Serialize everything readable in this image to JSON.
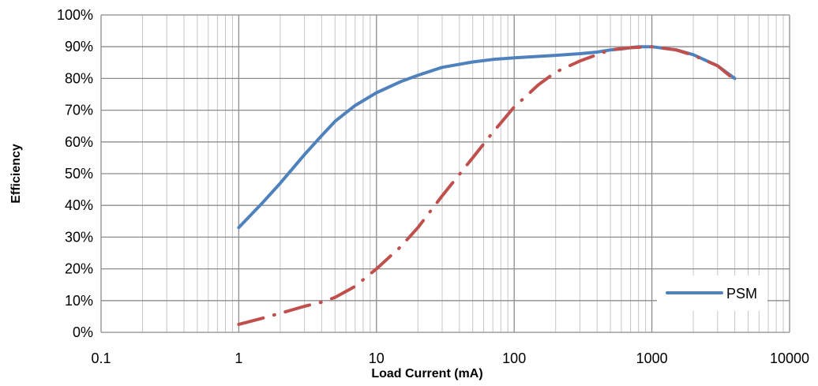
{
  "chart_data": {
    "type": "line",
    "title": "",
    "xlabel": "Load Current (mA)",
    "ylabel": "Efficiency",
    "x_scale": "log",
    "xlim": [
      0.1,
      10000
    ],
    "ylim": [
      0,
      100
    ],
    "x_ticks": [
      "0.1",
      "1",
      "10",
      "100",
      "1000",
      "10000"
    ],
    "y_ticks": [
      "0%",
      "10%",
      "20%",
      "30%",
      "40%",
      "50%",
      "60%",
      "70%",
      "80%",
      "90%",
      "100%"
    ],
    "grid": true,
    "legend_position": "bottom-right",
    "series": [
      {
        "name": "PSM",
        "color": "#4f81bd",
        "style": "solid",
        "x": [
          1,
          1.5,
          2,
          3,
          4,
          5,
          7,
          10,
          15,
          20,
          30,
          50,
          70,
          100,
          200,
          300,
          400,
          500,
          600,
          700,
          800,
          1000,
          1500,
          2000,
          3000,
          4000
        ],
        "y": [
          33,
          41,
          47,
          56,
          62,
          66.5,
          71.5,
          75.5,
          79,
          81,
          83.5,
          85.2,
          86,
          86.5,
          87.3,
          87.8,
          88.3,
          89,
          89.3,
          89.7,
          90,
          90,
          89,
          87.5,
          84,
          80
        ]
      },
      {
        "name": "",
        "color": "#c0504d",
        "style": "dash-dot",
        "x": [
          1,
          1.5,
          2,
          3,
          4,
          5,
          7,
          10,
          15,
          20,
          30,
          50,
          70,
          100,
          150,
          200,
          300,
          400,
          500,
          700,
          1000,
          1500,
          2000,
          3000,
          4000
        ],
        "y": [
          2.5,
          4.5,
          6,
          8.2,
          9.5,
          11,
          14.5,
          20,
          27,
          33,
          43,
          55,
          63,
          71,
          78,
          82,
          85.5,
          87.5,
          89,
          89.7,
          90,
          89,
          87.3,
          84,
          79.5
        ]
      }
    ]
  }
}
